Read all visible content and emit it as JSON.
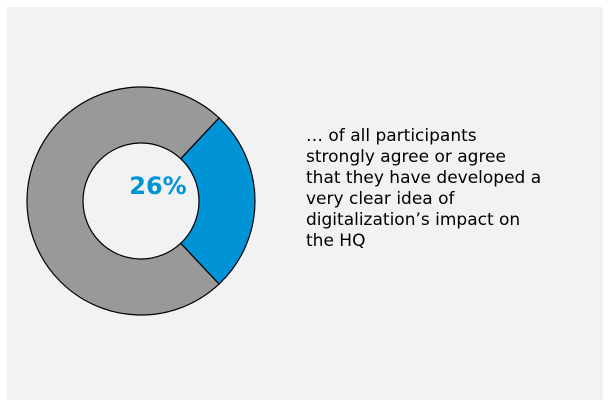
{
  "chart_data": {
    "type": "pie",
    "categories": [
      "strongly agree or agree",
      "other"
    ],
    "values": [
      26,
      74
    ],
    "value_label": "26%",
    "colors": [
      "#0093d5",
      "#999999"
    ],
    "hole": true
  },
  "caption": {
    "lines": "… of all participants\nstrongly agree or agree\nthat they have developed a\nvery clear idea of\ndigitalization’s impact on\nthe HQ"
  }
}
